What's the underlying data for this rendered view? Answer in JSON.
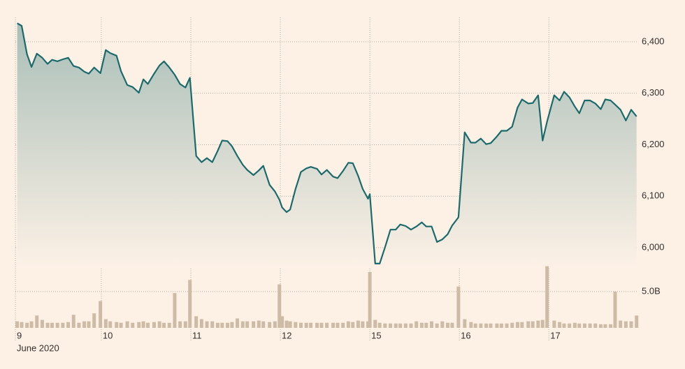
{
  "chart_data": {
    "type": "line",
    "xlabel": "June 2020",
    "x": [
      0.02,
      0.07,
      0.13,
      0.18,
      0.24,
      0.3,
      0.36,
      0.41,
      0.47,
      0.53,
      0.59,
      0.65,
      0.71,
      0.77,
      0.82,
      0.88,
      0.95,
      1.01,
      1.06,
      1.13,
      1.18,
      1.25,
      1.31,
      1.38,
      1.43,
      1.48,
      1.55,
      1.61,
      1.66,
      1.72,
      1.78,
      1.84,
      1.9,
      1.95,
      2.02,
      2.08,
      2.14,
      2.2,
      2.26,
      2.31,
      2.37,
      2.42,
      2.48,
      2.54,
      2.59,
      2.66,
      2.72,
      2.77,
      2.84,
      2.9,
      2.95,
      2.98,
      3.03,
      3.07,
      3.13,
      3.19,
      3.25,
      3.3,
      3.37,
      3.42,
      3.48,
      3.55,
      3.6,
      3.66,
      3.72,
      3.77,
      3.83,
      3.88,
      3.94,
      3.96,
      4.02,
      4.07,
      4.13,
      4.19,
      4.25,
      4.3,
      4.36,
      4.42,
      4.48,
      4.54,
      4.59,
      4.65,
      4.71,
      4.77,
      4.83,
      4.88,
      4.95,
      5.02,
      5.09,
      5.14,
      5.2,
      5.26,
      5.31,
      5.38,
      5.43,
      5.49,
      5.55,
      5.61,
      5.66,
      5.73,
      5.78,
      5.84,
      5.89,
      5.94,
      6.02,
      6.08,
      6.13,
      6.19,
      6.25,
      6.3,
      6.36,
      6.42,
      6.48,
      6.54,
      6.59,
      6.65,
      6.7,
      6.76,
      6.82,
      6.88,
      6.94
    ],
    "series": [
      {
        "color": "#1b6a6c",
        "values": [
          6436,
          6431,
          6376,
          6351,
          6377,
          6369,
          6357,
          6365,
          6362,
          6366,
          6369,
          6353,
          6350,
          6342,
          6338,
          6350,
          6339,
          6384,
          6378,
          6373,
          6343,
          6316,
          6312,
          6301,
          6327,
          6318,
          6338,
          6354,
          6362,
          6350,
          6336,
          6318,
          6311,
          6330,
          6178,
          6166,
          6174,
          6166,
          6188,
          6208,
          6207,
          6197,
          6178,
          6161,
          6151,
          6141,
          6150,
          6159,
          6122,
          6109,
          6093,
          6078,
          6069,
          6074,
          6114,
          6147,
          6154,
          6157,
          6153,
          6142,
          6151,
          6138,
          6135,
          6149,
          6165,
          6164,
          6139,
          6114,
          6095,
          6104,
          5969,
          5969,
          6001,
          6035,
          6035,
          6045,
          6042,
          6035,
          6041,
          6049,
          6041,
          6041,
          6011,
          6016,
          6026,
          6043,
          6059,
          6224,
          6204,
          6204,
          6212,
          6201,
          6203,
          6216,
          6227,
          6227,
          6235,
          6272,
          6288,
          6280,
          6281,
          6296,
          6208,
          6245,
          6296,
          6286,
          6303,
          6292,
          6274,
          6261,
          6286,
          6286,
          6280,
          6269,
          6288,
          6286,
          6278,
          6268,
          6247,
          6268,
          6255
        ]
      },
      {
        "type": "bar",
        "axis": "y2",
        "color": "#cdbba6",
        "values": [
          0.9,
          0.8,
          0.7,
          0.9,
          1.7,
          1.1,
          0.7,
          0.7,
          0.7,
          0.7,
          0.8,
          1.8,
          0.7,
          0.9,
          0.9,
          2.0,
          3.7,
          1.2,
          0.9,
          0.8,
          0.7,
          0.9,
          0.7,
          0.8,
          0.9,
          0.7,
          0.8,
          0.9,
          0.7,
          0.7,
          4.8,
          0.9,
          0.9,
          6.6,
          1.6,
          1.2,
          0.9,
          0.9,
          0.7,
          0.7,
          0.7,
          0.8,
          1.3,
          0.9,
          0.9,
          0.9,
          1.0,
          0.9,
          0.8,
          0.9,
          6.0,
          1.6,
          1.0,
          0.9,
          0.8,
          0.7,
          0.7,
          0.7,
          0.7,
          0.7,
          0.7,
          0.7,
          0.7,
          0.7,
          0.9,
          0.8,
          1.0,
          0.9,
          0.9,
          7.7,
          1.1,
          0.7,
          0.6,
          0.6,
          0.6,
          0.6,
          0.6,
          0.6,
          0.9,
          0.7,
          0.7,
          0.9,
          0.6,
          0.9,
          0.7,
          0.7,
          5.7,
          1.2,
          0.8,
          0.6,
          0.6,
          0.6,
          0.6,
          0.6,
          0.6,
          0.6,
          0.7,
          0.8,
          0.8,
          0.9,
          0.9,
          1.0,
          1.1,
          8.5,
          1.0,
          0.8,
          0.6,
          0.6,
          0.7,
          0.6,
          0.6,
          0.6,
          0.6,
          0.5,
          0.5,
          0.5,
          5.0,
          1.0,
          0.9,
          0.9,
          1.7
        ]
      }
    ],
    "xlim": [
      0,
      6.95
    ],
    "xticks": [
      {
        "value": 0,
        "label": "9"
      },
      {
        "value": 0.96,
        "label": "10"
      },
      {
        "value": 1.96,
        "label": "11"
      },
      {
        "value": 2.96,
        "label": "12"
      },
      {
        "value": 3.96,
        "label": "15"
      },
      {
        "value": 4.96,
        "label": "16"
      },
      {
        "value": 5.96,
        "label": "17"
      }
    ],
    "ylim": [
      5960,
      6450
    ],
    "yticks": [
      {
        "value": 6000,
        "label": "6,000"
      },
      {
        "value": 6100,
        "label": "6,100"
      },
      {
        "value": 6200,
        "label": "6,200"
      },
      {
        "value": 6300,
        "label": "6,300"
      },
      {
        "value": 6400,
        "label": "6,400"
      }
    ],
    "y2lim": [
      0,
      10
    ],
    "y2ticks": [
      {
        "value": 5,
        "label": "5.0B"
      }
    ],
    "grid": true
  }
}
